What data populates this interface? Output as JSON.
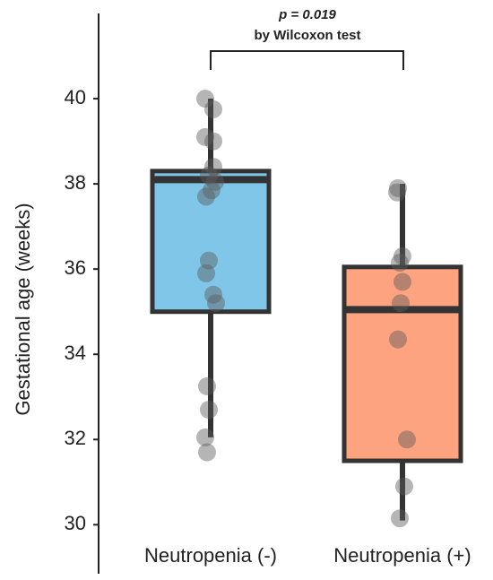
{
  "chart_data": {
    "type": "box",
    "title": "p = 0.019",
    "subtitle": "by Wilcoxon test",
    "y_label": "Gestational age (weeks)",
    "categories": [
      "Neutropenia (-)",
      "Neutropenia (+)"
    ],
    "series": [
      {
        "color": "#7fc6e8",
        "whisker_low": 32.05,
        "q1": 35.0,
        "median": 38.1,
        "q3": 38.3,
        "whisker_high": 40.0,
        "points": [
          40.0,
          39.75,
          39.1,
          39.0,
          38.4,
          38.2,
          38.05,
          37.85,
          37.7,
          36.2,
          35.9,
          35.4,
          35.2,
          33.25,
          32.7,
          32.05,
          31.7
        ]
      },
      {
        "color": "#fea37f",
        "whisker_low": 30.1,
        "q1": 31.5,
        "median": 35.05,
        "q3": 36.05,
        "whisker_high": 38.0,
        "points": [
          37.9,
          37.8,
          36.3,
          36.15,
          35.7,
          35.2,
          34.35,
          32.0,
          30.9,
          30.15
        ]
      }
    ],
    "ylim": [
      28.85,
      42
    ],
    "yticks": [
      30,
      32,
      34,
      36,
      38,
      40
    ]
  }
}
